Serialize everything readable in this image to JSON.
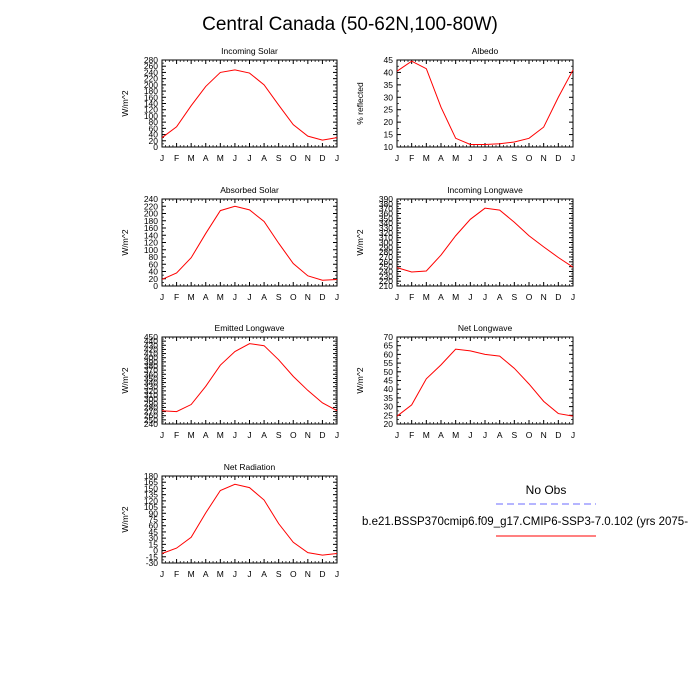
{
  "figure": {
    "title": "Central Canada (50-62N,100-80W)"
  },
  "legend": {
    "obs_label": "No Obs",
    "model_label": "b.e21.BSSP370cmip6.f09_g17.CMIP6-SSP3-7.0.102 (yrs 2075-",
    "obs_color": "#6b6bff",
    "model_color": "#ff0000"
  },
  "chart_data": [
    {
      "type": "line",
      "title": "Incoming Solar",
      "ylabel": "W/m^2",
      "categories": [
        "J",
        "F",
        "M",
        "A",
        "M",
        "J",
        "J",
        "A",
        "S",
        "O",
        "N",
        "D",
        "J"
      ],
      "yticks": [
        0,
        20,
        40,
        60,
        80,
        100,
        120,
        140,
        160,
        180,
        200,
        220,
        240,
        260,
        280
      ],
      "ylim": [
        0,
        280
      ],
      "series": [
        {
          "values": [
            30,
            65,
            133,
            195,
            240,
            248,
            238,
            200,
            135,
            72,
            35,
            22,
            30
          ]
        }
      ]
    },
    {
      "type": "line",
      "title": "Albedo",
      "ylabel": "% reflected",
      "categories": [
        "J",
        "F",
        "M",
        "A",
        "M",
        "J",
        "J",
        "A",
        "S",
        "O",
        "N",
        "D",
        "J"
      ],
      "yticks": [
        10,
        15,
        20,
        25,
        30,
        35,
        40,
        45
      ],
      "ylim": [
        10,
        45
      ],
      "series": [
        {
          "values": [
            40.5,
            44.5,
            41.5,
            26,
            13.5,
            11,
            11,
            11.3,
            12,
            13.5,
            18,
            30,
            41
          ]
        }
      ]
    },
    {
      "type": "line",
      "title": "Absorbed Solar",
      "ylabel": "W/m^2",
      "categories": [
        "J",
        "F",
        "M",
        "A",
        "M",
        "J",
        "J",
        "A",
        "S",
        "O",
        "N",
        "D",
        "J"
      ],
      "yticks": [
        0,
        20,
        40,
        60,
        80,
        100,
        120,
        140,
        160,
        180,
        200,
        220,
        240
      ],
      "ylim": [
        0,
        240
      ],
      "series": [
        {
          "values": [
            18,
            36,
            78,
            145,
            208,
            220,
            210,
            178,
            118,
            62,
            28,
            16,
            18
          ]
        }
      ]
    },
    {
      "type": "line",
      "title": "Incoming Longwave",
      "ylabel": "W/m^2",
      "categories": [
        "J",
        "F",
        "M",
        "A",
        "M",
        "J",
        "J",
        "A",
        "S",
        "O",
        "N",
        "D",
        "J"
      ],
      "yticks": [
        210,
        220,
        230,
        240,
        250,
        260,
        270,
        280,
        290,
        300,
        310,
        320,
        330,
        340,
        350,
        360,
        370,
        380,
        390
      ],
      "ylim": [
        210,
        390
      ],
      "series": [
        {
          "values": [
            248,
            239,
            241,
            274,
            314,
            348,
            371,
            367,
            342,
            314,
            291,
            269,
            249
          ]
        }
      ]
    },
    {
      "type": "line",
      "title": "Emitted Longwave",
      "ylabel": "W/m^2",
      "categories": [
        "J",
        "F",
        "M",
        "A",
        "M",
        "J",
        "J",
        "A",
        "S",
        "O",
        "N",
        "D",
        "J"
      ],
      "yticks": [
        240,
        250,
        260,
        270,
        280,
        290,
        300,
        310,
        320,
        330,
        340,
        350,
        360,
        370,
        380,
        390,
        400,
        410,
        420,
        430,
        440,
        450
      ],
      "ylim": [
        240,
        450
      ],
      "series": [
        {
          "values": [
            272,
            270,
            287,
            331,
            382,
            415,
            434,
            429,
            395,
            355,
            321,
            291,
            272
          ]
        }
      ]
    },
    {
      "type": "line",
      "title": "Net Longwave",
      "ylabel": "W/m^2",
      "categories": [
        "J",
        "F",
        "M",
        "A",
        "M",
        "J",
        "J",
        "A",
        "S",
        "O",
        "N",
        "D",
        "J"
      ],
      "yticks": [
        20,
        25,
        30,
        35,
        40,
        45,
        50,
        55,
        60,
        65,
        70
      ],
      "ylim": [
        20,
        70
      ],
      "series": [
        {
          "values": [
            24.5,
            31,
            46,
            54,
            63,
            62,
            60,
            59,
            52,
            43,
            33,
            26,
            24.5
          ]
        }
      ]
    },
    {
      "type": "line",
      "title": "Net Radiation",
      "ylabel": "W/m^2",
      "categories": [
        "J",
        "F",
        "M",
        "A",
        "M",
        "J",
        "J",
        "A",
        "S",
        "O",
        "N",
        "D",
        "J"
      ],
      "yticks": [
        -30,
        -15,
        0,
        15,
        30,
        45,
        60,
        75,
        90,
        105,
        120,
        135,
        150,
        165,
        180
      ],
      "ylim": [
        -30,
        180
      ],
      "series": [
        {
          "values": [
            -7,
            6,
            32,
            91,
            145,
            160,
            152,
            122,
            65,
            20,
            -5,
            -11,
            -7
          ]
        }
      ]
    }
  ]
}
